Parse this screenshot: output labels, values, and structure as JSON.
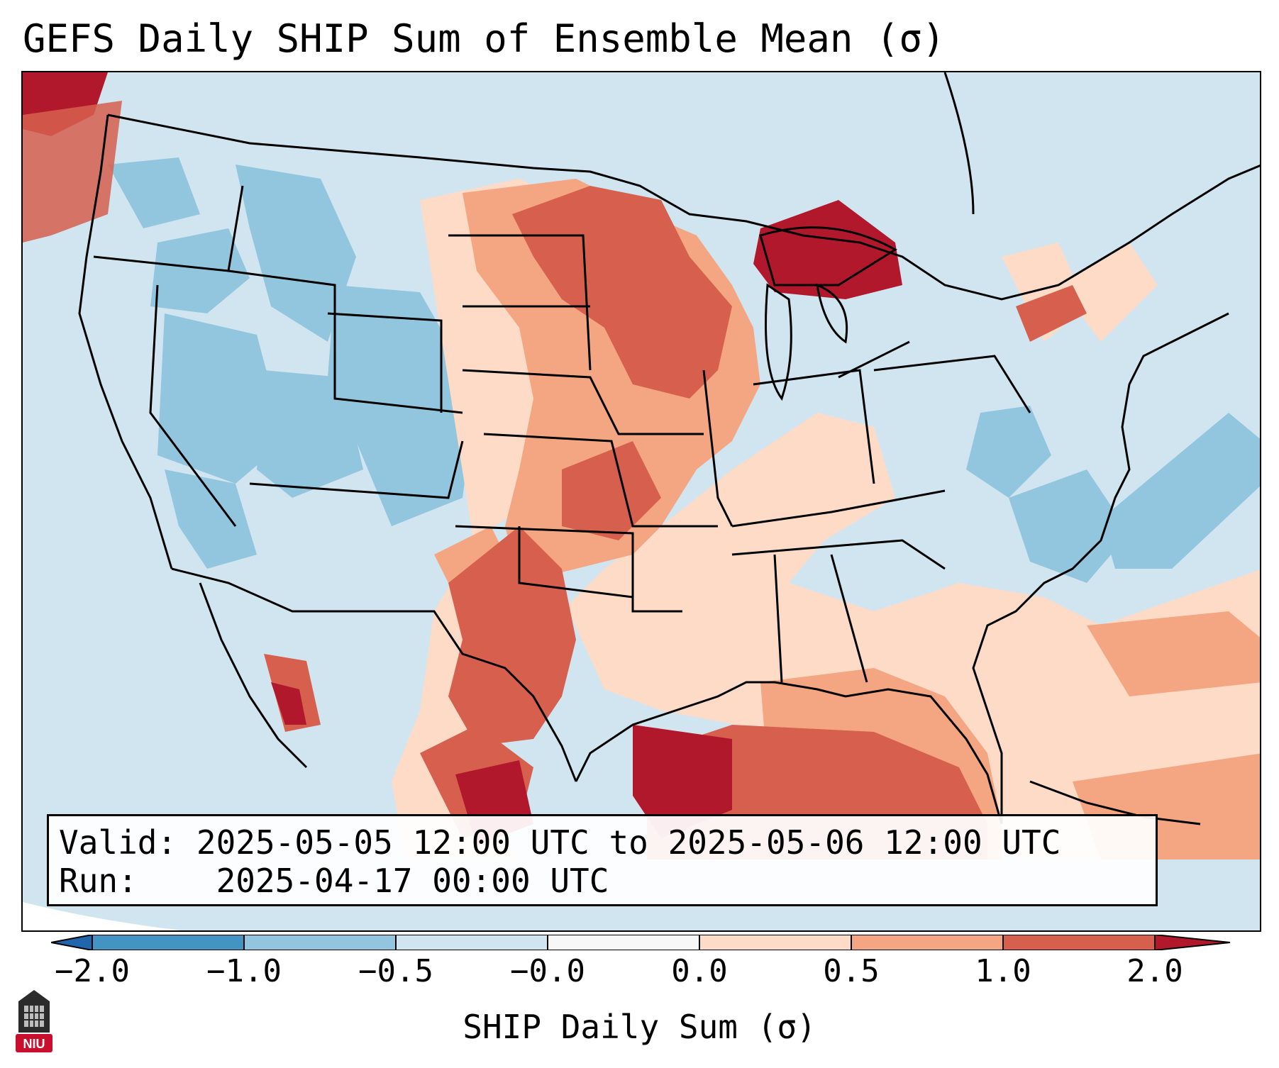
{
  "title": "GEFS Daily SHIP Sum of Ensemble Mean (σ)",
  "info": {
    "valid_label": "Valid:",
    "valid_value": "2025-05-05 12:00 UTC to 2025-05-06 12:00 UTC",
    "run_label": "Run:",
    "run_value": "2025-04-17 00:00 UTC"
  },
  "colorbar": {
    "label": "SHIP Daily Sum (σ)",
    "ticks": [
      "−2.0",
      "−1.0",
      "−0.5",
      "−0.0",
      "0.0",
      "0.5",
      "1.0",
      "2.0"
    ],
    "bins": [
      {
        "range": "< -2.0",
        "color": "#2166ac"
      },
      {
        "range": "-2.0 to -1.0",
        "color": "#4393c3"
      },
      {
        "range": "-1.0 to -0.5",
        "color": "#92c5de"
      },
      {
        "range": "-0.5 to -0.0",
        "color": "#d1e5f0"
      },
      {
        "range": "-0.0 to 0.0",
        "color": "#f7f7f7"
      },
      {
        "range": "0.0 to 0.5",
        "color": "#fddbc7"
      },
      {
        "range": "0.5 to 1.0",
        "color": "#f4a582"
      },
      {
        "range": "1.0 to 2.0",
        "color": "#d6604d"
      },
      {
        "range": "> 2.0",
        "color": "#b2182b"
      }
    ]
  },
  "map": {
    "region": "Contiguous United States",
    "background_color": "#d1e5f0",
    "boundary_color": "#000000"
  },
  "logo": {
    "text": "NIU",
    "icon": "niu-logo-icon"
  }
}
